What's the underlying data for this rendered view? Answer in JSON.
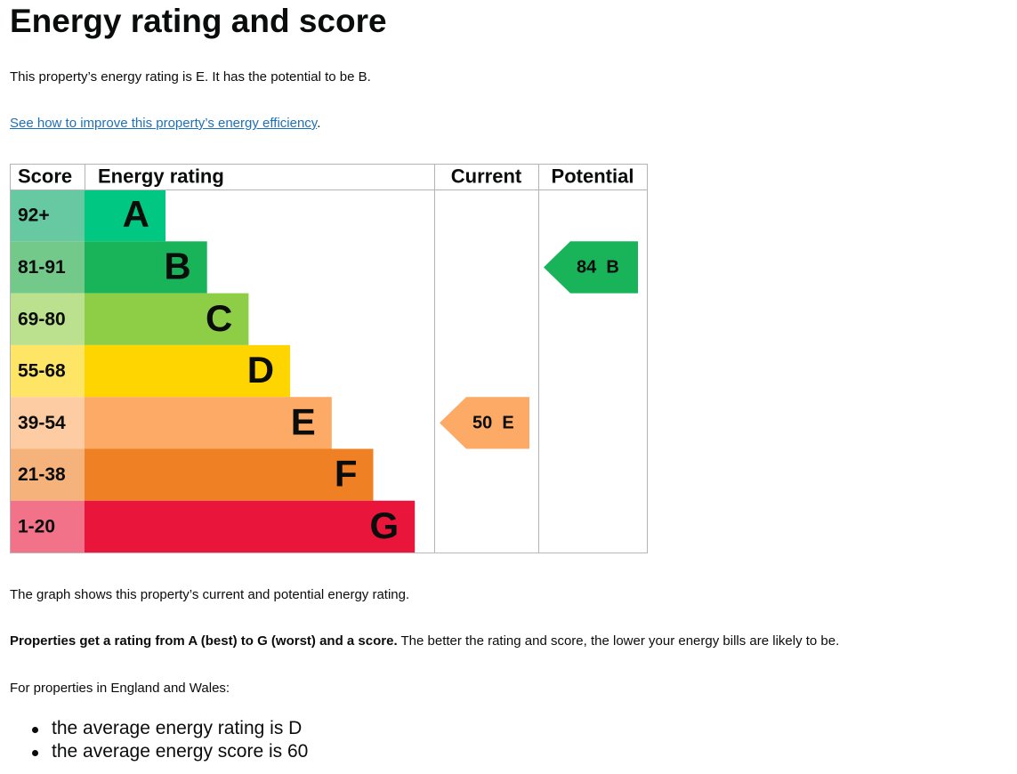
{
  "page": {
    "title": "Energy rating and score",
    "intro": "This property’s energy rating is E. It has the potential to be B.",
    "link_text": "See how to improve this property’s energy efficiency",
    "link_suffix": ".",
    "graph_description": "The graph shows this property’s current and potential energy rating.",
    "ratings_bold": "Properties get a rating from A (best) to G (worst) and a score.",
    "ratings_rest": " The better the rating and score, the lower your energy bills are likely to be.",
    "region_intro": "For properties in England and Wales:",
    "averages": [
      "the average energy rating is D",
      "the average energy score is 60"
    ]
  },
  "chart_data": {
    "type": "table",
    "columns": [
      "Score",
      "Energy rating",
      "Current",
      "Potential"
    ],
    "bands": [
      {
        "score": "92+",
        "letter": "A",
        "bar_color": "#00c781",
        "score_color": "#67c9a2"
      },
      {
        "score": "81-91",
        "letter": "B",
        "bar_color": "#19b459",
        "score_color": "#73c98a"
      },
      {
        "score": "69-80",
        "letter": "C",
        "bar_color": "#8dce46",
        "score_color": "#bbe18f"
      },
      {
        "score": "55-68",
        "letter": "D",
        "bar_color": "#ffd500",
        "score_color": "#ffe566"
      },
      {
        "score": "39-54",
        "letter": "E",
        "bar_color": "#fcaa65",
        "score_color": "#fdcca2"
      },
      {
        "score": "21-38",
        "letter": "F",
        "bar_color": "#ef8023",
        "score_color": "#f5b37b"
      },
      {
        "score": "1-20",
        "letter": "G",
        "bar_color": "#e9153b",
        "score_color": "#f27389"
      }
    ],
    "current": {
      "score": 50,
      "letter": "E",
      "label": "50  E",
      "color": "#fcaa65"
    },
    "potential": {
      "score": 84,
      "letter": "B",
      "label": "84  B",
      "color": "#19b459"
    }
  }
}
